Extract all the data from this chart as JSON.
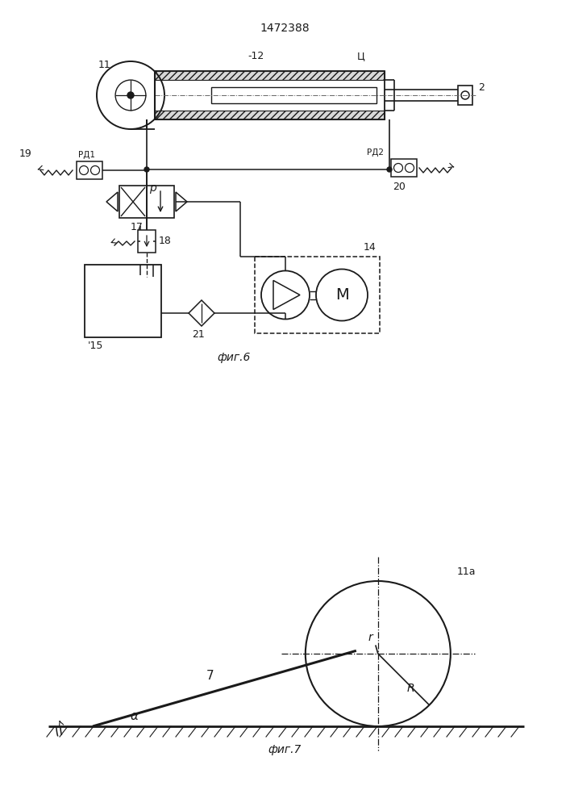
{
  "title": "1472388",
  "fig6_label": "фиг.6",
  "fig7_label": "фиг.7",
  "line_color": "#1a1a1a",
  "labels": {
    "11": "11",
    "12": "-12",
    "4": "Ц",
    "2": "2",
    "19": "19",
    "rd1": "РД1",
    "rd2": "РД2",
    "20": "20",
    "p": "р",
    "17": "17",
    "18": "18",
    "14": "14",
    "15": "'15",
    "21": "21",
    "11a": "11а",
    "7": "7",
    "r": "r",
    "R": "R",
    "alpha": "α"
  }
}
